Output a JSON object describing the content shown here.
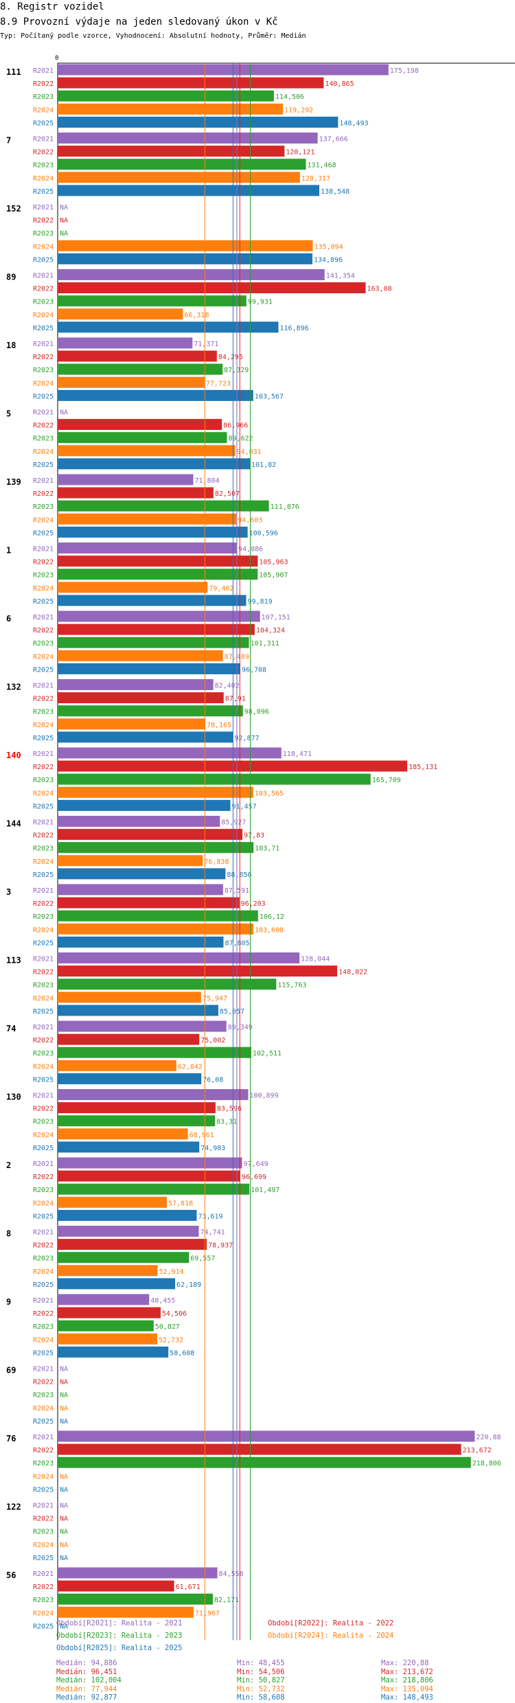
{
  "header": {
    "section": "8. Registr vozidel",
    "title": "8.9 Provozní výdaje na jeden sledovaný úkon v Kč",
    "subtitle": "Typ: Počítaný podle vzorce, Vyhodnocení: Absolutní hodnoty, Průměr: Medián"
  },
  "chart_data": {
    "type": "bar",
    "orientation": "horizontal",
    "title": "8.9 Provozní výdaje na jeden sledovaný úkon v Kč",
    "xlim": [
      0,
      224
    ],
    "axis_zero_label": "0",
    "na_label": "NA",
    "series_names": [
      "R2021",
      "R2022",
      "R2023",
      "R2024",
      "R2025"
    ],
    "colors": {
      "R2021": "#9467bd",
      "R2022": "#d62728",
      "R2023": "#2ca02c",
      "R2024": "#ff7f0e",
      "R2025": "#1f77b4"
    },
    "highlight_color": "#ff0000",
    "groups": [
      {
        "label": "111",
        "values": [
          "175,198",
          "140,865",
          "114,506",
          "119,292",
          "148,493"
        ]
      },
      {
        "label": "7",
        "values": [
          "137,666",
          "120,121",
          "131,468",
          "128,317",
          "138,548"
        ]
      },
      {
        "label": "152",
        "values": [
          null,
          null,
          null,
          "135,094",
          "134,896"
        ]
      },
      {
        "label": "89",
        "values": [
          "141,354",
          "163,08",
          "99,931",
          "66,318",
          "116,896"
        ]
      },
      {
        "label": "18",
        "values": [
          "71,371",
          "84,295",
          "87,329",
          "77,723",
          "103,567"
        ]
      },
      {
        "label": "5",
        "values": [
          null,
          "86,966",
          "89,622",
          "94,031",
          "101,82"
        ]
      },
      {
        "label": "139",
        "values": [
          "71,804",
          "82,507",
          "111,876",
          "94,603",
          "100,596"
        ]
      },
      {
        "label": "1",
        "values": [
          "94,886",
          "105,963",
          "105,907",
          "79,402",
          "99,819"
        ]
      },
      {
        "label": "6",
        "values": [
          "107,151",
          "104,324",
          "101,311",
          "87,489",
          "96,708"
        ]
      },
      {
        "label": "132",
        "values": [
          "82,402",
          "87,91",
          "98,096",
          "78,165",
          "92,877"
        ]
      },
      {
        "label": "140",
        "highlight": true,
        "values": [
          "118,471",
          "185,131",
          "165,709",
          "103,565",
          "91,457"
        ]
      },
      {
        "label": "144",
        "values": [
          "85,927",
          "97,83",
          "103,71",
          "76,838",
          "88,856"
        ]
      },
      {
        "label": "3",
        "values": [
          "87,591",
          "96,203",
          "106,12",
          "103,608",
          "87,805"
        ]
      },
      {
        "label": "113",
        "values": [
          "128,044",
          "148,022",
          "115,763",
          "75,947",
          "85,057"
        ]
      },
      {
        "label": "74",
        "values": [
          "89,349",
          "75,002",
          "102,511",
          "62,842",
          "76,08"
        ]
      },
      {
        "label": "130",
        "values": [
          "100,899",
          "83,596",
          "83,31",
          "68,961",
          "74,983"
        ]
      },
      {
        "label": "2",
        "values": [
          "97,649",
          "96,699",
          "101,497",
          "57,818",
          "73,619"
        ]
      },
      {
        "label": "8",
        "values": [
          "74,741",
          "78,937",
          "69,557",
          "52,914",
          "62,189"
        ]
      },
      {
        "label": "9",
        "values": [
          "48,455",
          "54,506",
          "50,827",
          "52,732",
          "58,608"
        ]
      },
      {
        "label": "69",
        "values": [
          null,
          null,
          null,
          null,
          null
        ]
      },
      {
        "label": "76",
        "values": [
          "220,88",
          "213,672",
          "218,806",
          null,
          null
        ]
      },
      {
        "label": "122",
        "values": [
          null,
          null,
          null,
          null,
          null
        ]
      },
      {
        "label": "56",
        "values": [
          "84,558",
          "61,671",
          "82,171",
          "71,967",
          null
        ]
      }
    ],
    "median_lines": [
      {
        "series": "R2021",
        "value": 94.886
      },
      {
        "series": "R2022",
        "value": 96.451
      },
      {
        "series": "R2023",
        "value": 102.004
      },
      {
        "series": "R2024",
        "value": 77.944
      },
      {
        "series": "R2025",
        "value": 92.877
      }
    ]
  },
  "legend": [
    {
      "series": "R2021",
      "text": "Období[R2021]: Realita - 2021"
    },
    {
      "series": "R2022",
      "text": "Období[R2022]: Realita - 2022"
    },
    {
      "series": "R2023",
      "text": "Období[R2023]: Realita - 2023"
    },
    {
      "series": "R2024",
      "text": "Období[R2024]: Realita - 2024"
    },
    {
      "series": "R2025",
      "text": "Období[R2025]: Realita - 2025"
    }
  ],
  "stats": [
    {
      "series": "R2021",
      "median": "Medián: 94,886",
      "min": "Min: 48,455",
      "max": "Max: 220,88"
    },
    {
      "series": "R2022",
      "median": "Medián: 96,451",
      "min": "Min: 54,506",
      "max": "Max: 213,672"
    },
    {
      "series": "R2023",
      "median": "Medián: 102,004",
      "min": "Min: 50,827",
      "max": "Max: 218,806"
    },
    {
      "series": "R2024",
      "median": "Medián: 77,944",
      "min": "Min: 52,732",
      "max": "Max: 135,094"
    },
    {
      "series": "R2025",
      "median": "Medián: 92,877",
      "min": "Min: 58,608",
      "max": "Max: 148,493"
    }
  ]
}
